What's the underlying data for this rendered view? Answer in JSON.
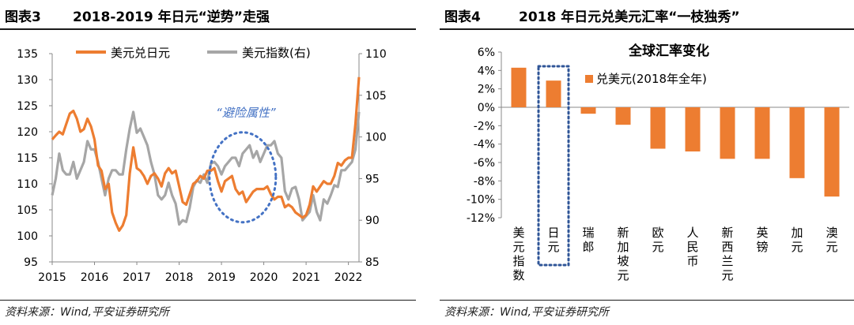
{
  "left": {
    "figure_no": "图表3",
    "title": "2018-2019 年日元“逆势”走强",
    "source": "资料来源：Wind,平安证券研究所",
    "annotation": "“避险属性”",
    "colors": {
      "usdjpy": "#ED7D31",
      "dxy": "#A6A6A6",
      "annotation": "#4472C4"
    }
  },
  "right": {
    "figure_no": "图表4",
    "title": "2018 年日元兑美元汇率“一枝独秀”",
    "source": "资料来源：Wind,平安证券研究所",
    "colors": {
      "bar": "#ED7D31",
      "highlight": "#2F5597"
    }
  },
  "chart_data": [
    {
      "type": "line",
      "title": "",
      "x_ticks": [
        "2015",
        "2016",
        "2017",
        "2018",
        "2019",
        "2020",
        "2021",
        "2022"
      ],
      "x_range": [
        "2015-01",
        "2022-04"
      ],
      "ylim_left": [
        95,
        135
      ],
      "y_ticks_left": [
        "95",
        "100",
        "105",
        "110",
        "115",
        "120",
        "125",
        "130",
        "135"
      ],
      "ylim_right": [
        85,
        110
      ],
      "y_ticks_right": [
        "85",
        "90",
        "95",
        "100",
        "105",
        "110"
      ],
      "legend_position": "top",
      "grid": false,
      "series": [
        {
          "name": "美元兑日元",
          "axis": "left",
          "x": [
            "2015-01",
            "2015-02",
            "2015-03",
            "2015-04",
            "2015-05",
            "2015-06",
            "2015-07",
            "2015-08",
            "2015-09",
            "2015-10",
            "2015-11",
            "2015-12",
            "2016-01",
            "2016-02",
            "2016-03",
            "2016-04",
            "2016-05",
            "2016-06",
            "2016-07",
            "2016-08",
            "2016-09",
            "2016-10",
            "2016-11",
            "2016-12",
            "2017-01",
            "2017-02",
            "2017-03",
            "2017-04",
            "2017-05",
            "2017-06",
            "2017-07",
            "2017-08",
            "2017-09",
            "2017-10",
            "2017-11",
            "2017-12",
            "2018-01",
            "2018-02",
            "2018-03",
            "2018-04",
            "2018-05",
            "2018-06",
            "2018-07",
            "2018-08",
            "2018-09",
            "2018-10",
            "2018-11",
            "2018-12",
            "2019-01",
            "2019-02",
            "2019-03",
            "2019-04",
            "2019-05",
            "2019-06",
            "2019-07",
            "2019-08",
            "2019-09",
            "2019-10",
            "2019-11",
            "2019-12",
            "2020-01",
            "2020-02",
            "2020-03",
            "2020-04",
            "2020-05",
            "2020-06",
            "2020-07",
            "2020-08",
            "2020-09",
            "2020-10",
            "2020-11",
            "2020-12",
            "2021-01",
            "2021-02",
            "2021-03",
            "2021-04",
            "2021-05",
            "2021-06",
            "2021-07",
            "2021-08",
            "2021-09",
            "2021-10",
            "2021-11",
            "2021-12",
            "2022-01",
            "2022-02",
            "2022-03",
            "2022-04"
          ],
          "values": [
            118.5,
            119.3,
            120.0,
            119.5,
            121.5,
            123.5,
            124.0,
            122.5,
            120.0,
            120.5,
            122.5,
            121.0,
            118.5,
            113.5,
            112.5,
            109.0,
            110.0,
            104.5,
            102.5,
            101.0,
            102.0,
            104.0,
            112.0,
            117.0,
            113.0,
            112.5,
            111.5,
            110.0,
            111.5,
            112.0,
            111.0,
            109.5,
            112.0,
            113.0,
            112.0,
            112.5,
            109.5,
            106.5,
            106.0,
            108.0,
            110.0,
            110.5,
            111.5,
            111.0,
            112.5,
            112.5,
            113.0,
            110.5,
            108.5,
            110.5,
            111.0,
            111.5,
            109.0,
            108.0,
            108.5,
            106.5,
            107.5,
            108.5,
            109.0,
            109.0,
            109.0,
            109.5,
            108.0,
            107.0,
            107.5,
            107.5,
            105.5,
            106.0,
            105.5,
            104.5,
            104.0,
            103.5,
            104.0,
            106.0,
            109.5,
            108.5,
            109.5,
            110.5,
            110.0,
            110.0,
            111.5,
            114.0,
            113.5,
            114.5,
            115.0,
            115.0,
            121.5,
            130.5
          ]
        },
        {
          "name": "美元指数(右)",
          "axis": "right",
          "x": [
            "2015-01",
            "2015-02",
            "2015-03",
            "2015-04",
            "2015-05",
            "2015-06",
            "2015-07",
            "2015-08",
            "2015-09",
            "2015-10",
            "2015-11",
            "2015-12",
            "2016-01",
            "2016-02",
            "2016-03",
            "2016-04",
            "2016-05",
            "2016-06",
            "2016-07",
            "2016-08",
            "2016-09",
            "2016-10",
            "2016-11",
            "2016-12",
            "2017-01",
            "2017-02",
            "2017-03",
            "2017-04",
            "2017-05",
            "2017-06",
            "2017-07",
            "2017-08",
            "2017-09",
            "2017-10",
            "2017-11",
            "2017-12",
            "2018-01",
            "2018-02",
            "2018-03",
            "2018-04",
            "2018-05",
            "2018-06",
            "2018-07",
            "2018-08",
            "2018-09",
            "2018-10",
            "2018-11",
            "2018-12",
            "2019-01",
            "2019-02",
            "2019-03",
            "2019-04",
            "2019-05",
            "2019-06",
            "2019-07",
            "2019-08",
            "2019-09",
            "2019-10",
            "2019-11",
            "2019-12",
            "2020-01",
            "2020-02",
            "2020-03",
            "2020-04",
            "2020-05",
            "2020-06",
            "2020-07",
            "2020-08",
            "2020-09",
            "2020-10",
            "2020-11",
            "2020-12",
            "2021-01",
            "2021-02",
            "2021-03",
            "2021-04",
            "2021-05",
            "2021-06",
            "2021-07",
            "2021-08",
            "2021-09",
            "2021-10",
            "2021-11",
            "2021-12",
            "2022-01",
            "2022-02",
            "2022-03",
            "2022-04"
          ],
          "values": [
            93.0,
            95.0,
            98.0,
            96.0,
            95.5,
            95.5,
            97.0,
            95.0,
            96.0,
            97.0,
            99.5,
            98.5,
            98.5,
            97.0,
            95.0,
            93.0,
            95.0,
            96.0,
            96.0,
            95.5,
            95.5,
            98.5,
            101.0,
            103.0,
            100.5,
            101.0,
            100.0,
            99.0,
            97.0,
            95.5,
            93.0,
            92.5,
            93.0,
            94.5,
            93.0,
            92.0,
            89.5,
            90.0,
            89.8,
            91.5,
            94.0,
            94.8,
            94.5,
            95.5,
            94.5,
            96.8,
            97.0,
            96.5,
            95.5,
            96.5,
            97.0,
            97.5,
            97.5,
            96.5,
            98.0,
            98.5,
            99.0,
            97.5,
            98.3,
            97.0,
            98.0,
            99.0,
            99.0,
            99.5,
            98.0,
            97.5,
            93.5,
            92.5,
            93.8,
            94.0,
            92.5,
            90.0,
            90.5,
            91.0,
            93.0,
            91.0,
            90.0,
            92.5,
            92.0,
            93.0,
            94.2,
            94.0,
            96.0,
            96.0,
            96.5,
            97.0,
            98.5,
            103.0
          ]
        }
      ]
    },
    {
      "type": "bar",
      "title": "全球汇率变化",
      "categories": [
        "美元指数",
        "日元",
        "瑞郎",
        "新加坡元",
        "欧元",
        "人民币",
        "新西兰元",
        "英镑",
        "加元",
        "澳元"
      ],
      "series": [
        {
          "name": "兑美元(2018年全年)",
          "values": [
            4.3,
            2.9,
            -0.7,
            -1.9,
            -4.5,
            -4.8,
            -5.6,
            -5.6,
            -7.7,
            -9.7
          ]
        }
      ],
      "ylim": [
        -12,
        6
      ],
      "y_ticks": [
        "6%",
        "4%",
        "2%",
        "0%",
        "-2%",
        "-4%",
        "-6%",
        "-8%",
        "-10%",
        "-12%"
      ],
      "highlight_category": "日元",
      "legend_position": "top-right",
      "grid": false
    }
  ]
}
